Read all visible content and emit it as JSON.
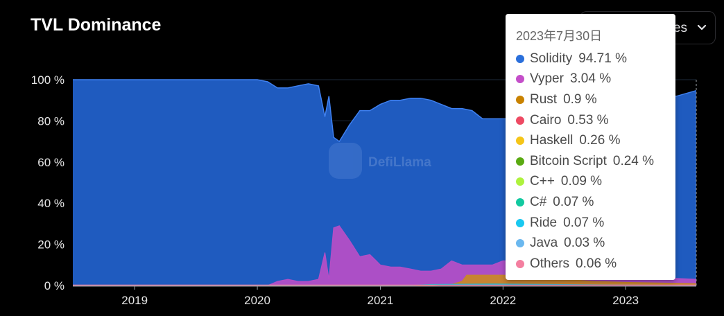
{
  "header": {
    "title": "TVL Dominance"
  },
  "dropdown": {
    "label": "es"
  },
  "watermark": {
    "text": "DefiLlama"
  },
  "colors": {
    "background": "#000000",
    "solidity": "#1f5bbf",
    "vyper": "#b44fc6",
    "rust": "#c8872a",
    "c_plus_plus": "#a9e65b",
    "ride": "#18b9d6"
  },
  "chart_data": {
    "type": "area",
    "stacked": true,
    "ylim": [
      0,
      100
    ],
    "y_ticks": [
      "0 %",
      "20 %",
      "40 %",
      "60 %",
      "80 %",
      "100 %"
    ],
    "x_ticks": [
      "2019",
      "2020",
      "2021",
      "2022",
      "2023"
    ],
    "x_range": [
      "2018-07-01",
      "2023-07-30"
    ],
    "grid": true,
    "series": [
      {
        "name": "Vyper",
        "color": "#b44fc6",
        "points": [
          [
            "2018-07-01",
            0
          ],
          [
            "2020-02-01",
            0
          ],
          [
            "2020-03-01",
            2
          ],
          [
            "2020-04-01",
            3
          ],
          [
            "2020-05-01",
            2
          ],
          [
            "2020-06-01",
            2
          ],
          [
            "2020-07-01",
            3
          ],
          [
            "2020-07-20",
            16
          ],
          [
            "2020-08-01",
            3
          ],
          [
            "2020-08-15",
            28
          ],
          [
            "2020-09-01",
            29
          ],
          [
            "2020-10-01",
            22
          ],
          [
            "2020-11-01",
            14
          ],
          [
            "2020-12-01",
            15
          ],
          [
            "2020-12-20",
            12
          ],
          [
            "2021-01-01",
            10
          ],
          [
            "2021-02-01",
            9
          ],
          [
            "2021-03-01",
            9
          ],
          [
            "2021-04-01",
            8
          ],
          [
            "2021-05-01",
            7
          ],
          [
            "2021-06-01",
            7
          ],
          [
            "2021-07-01",
            8
          ],
          [
            "2021-08-01",
            12
          ],
          [
            "2021-09-01",
            10
          ],
          [
            "2021-10-01",
            10
          ],
          [
            "2021-11-01",
            10
          ],
          [
            "2021-12-01",
            10
          ],
          [
            "2022-01-01",
            12
          ],
          [
            "2022-02-01",
            12
          ],
          [
            "2022-03-01",
            12
          ],
          [
            "2022-06-01",
            9
          ],
          [
            "2022-09-01",
            6
          ],
          [
            "2022-12-01",
            5
          ],
          [
            "2023-03-01",
            4
          ],
          [
            "2023-07-30",
            3.04
          ]
        ]
      },
      {
        "name": "Rust",
        "color": "#c8872a",
        "points": [
          [
            "2018-07-01",
            0
          ],
          [
            "2021-06-01",
            0
          ],
          [
            "2021-08-01",
            0.5
          ],
          [
            "2021-09-01",
            2
          ],
          [
            "2021-09-15",
            5
          ],
          [
            "2022-01-01",
            5
          ],
          [
            "2022-04-01",
            4
          ],
          [
            "2022-07-01",
            3
          ],
          [
            "2022-10-01",
            2
          ],
          [
            "2023-01-01",
            1.5
          ],
          [
            "2023-07-30",
            0.9
          ]
        ]
      },
      {
        "name": "Ride",
        "color": "#18b9d6",
        "points": [
          [
            "2018-07-01",
            0
          ],
          [
            "2021-04-01",
            0
          ],
          [
            "2021-06-01",
            0.5
          ],
          [
            "2021-12-01",
            0.7
          ],
          [
            "2022-06-01",
            0.5
          ],
          [
            "2022-12-01",
            0.2
          ],
          [
            "2023-07-30",
            0.07
          ]
        ]
      },
      {
        "name": "Solidity",
        "color": "#1f5bbf",
        "points": [
          [
            "2018-07-01",
            100
          ],
          [
            "2020-01-01",
            100
          ],
          [
            "2020-02-01",
            99
          ],
          [
            "2020-03-01",
            96
          ],
          [
            "2020-04-01",
            96
          ],
          [
            "2020-05-01",
            97
          ],
          [
            "2020-06-01",
            98
          ],
          [
            "2020-07-01",
            97
          ],
          [
            "2020-07-20",
            82
          ],
          [
            "2020-08-01",
            92
          ],
          [
            "2020-08-15",
            72
          ],
          [
            "2020-09-01",
            70
          ],
          [
            "2020-10-01",
            78
          ],
          [
            "2020-11-01",
            85
          ],
          [
            "2020-12-01",
            85
          ],
          [
            "2021-01-01",
            88
          ],
          [
            "2021-02-01",
            90
          ],
          [
            "2021-03-01",
            90
          ],
          [
            "2021-04-01",
            91
          ],
          [
            "2021-05-01",
            91
          ],
          [
            "2021-06-01",
            90
          ],
          [
            "2021-07-01",
            88
          ],
          [
            "2021-08-01",
            86
          ],
          [
            "2021-09-01",
            86
          ],
          [
            "2021-10-01",
            85
          ],
          [
            "2021-11-01",
            81
          ],
          [
            "2021-12-01",
            81
          ],
          [
            "2022-01-01",
            81
          ],
          [
            "2022-03-01",
            81
          ],
          [
            "2022-06-01",
            82
          ],
          [
            "2022-09-01",
            85
          ],
          [
            "2022-12-01",
            88
          ],
          [
            "2023-03-01",
            91
          ],
          [
            "2023-06-01",
            92
          ],
          [
            "2023-07-30",
            94.71
          ]
        ]
      }
    ]
  },
  "tooltip": {
    "date": "2023年7月30日",
    "items": [
      {
        "name": "Solidity",
        "value": "94.71 %",
        "color": "#2a6fdb"
      },
      {
        "name": "Vyper",
        "value": "3.04 %",
        "color": "#c44ec9"
      },
      {
        "name": "Rust",
        "value": "0.9 %",
        "color": "#c98200"
      },
      {
        "name": "Cairo",
        "value": "0.53 %",
        "color": "#ee4a63"
      },
      {
        "name": "Haskell",
        "value": "0.26 %",
        "color": "#f5c518"
      },
      {
        "name": "Bitcoin Script",
        "value": "0.24 %",
        "color": "#5aaa12"
      },
      {
        "name": "C++",
        "value": "0.09 %",
        "color": "#aef23d"
      },
      {
        "name": "C#",
        "value": "0.07 %",
        "color": "#12c9a0"
      },
      {
        "name": "Ride",
        "value": "0.07 %",
        "color": "#19c8f0"
      },
      {
        "name": "Java",
        "value": "0.03 %",
        "color": "#6bb8ef"
      },
      {
        "name": "Others",
        "value": "0.06 %",
        "color": "#f47fa0"
      }
    ]
  }
}
